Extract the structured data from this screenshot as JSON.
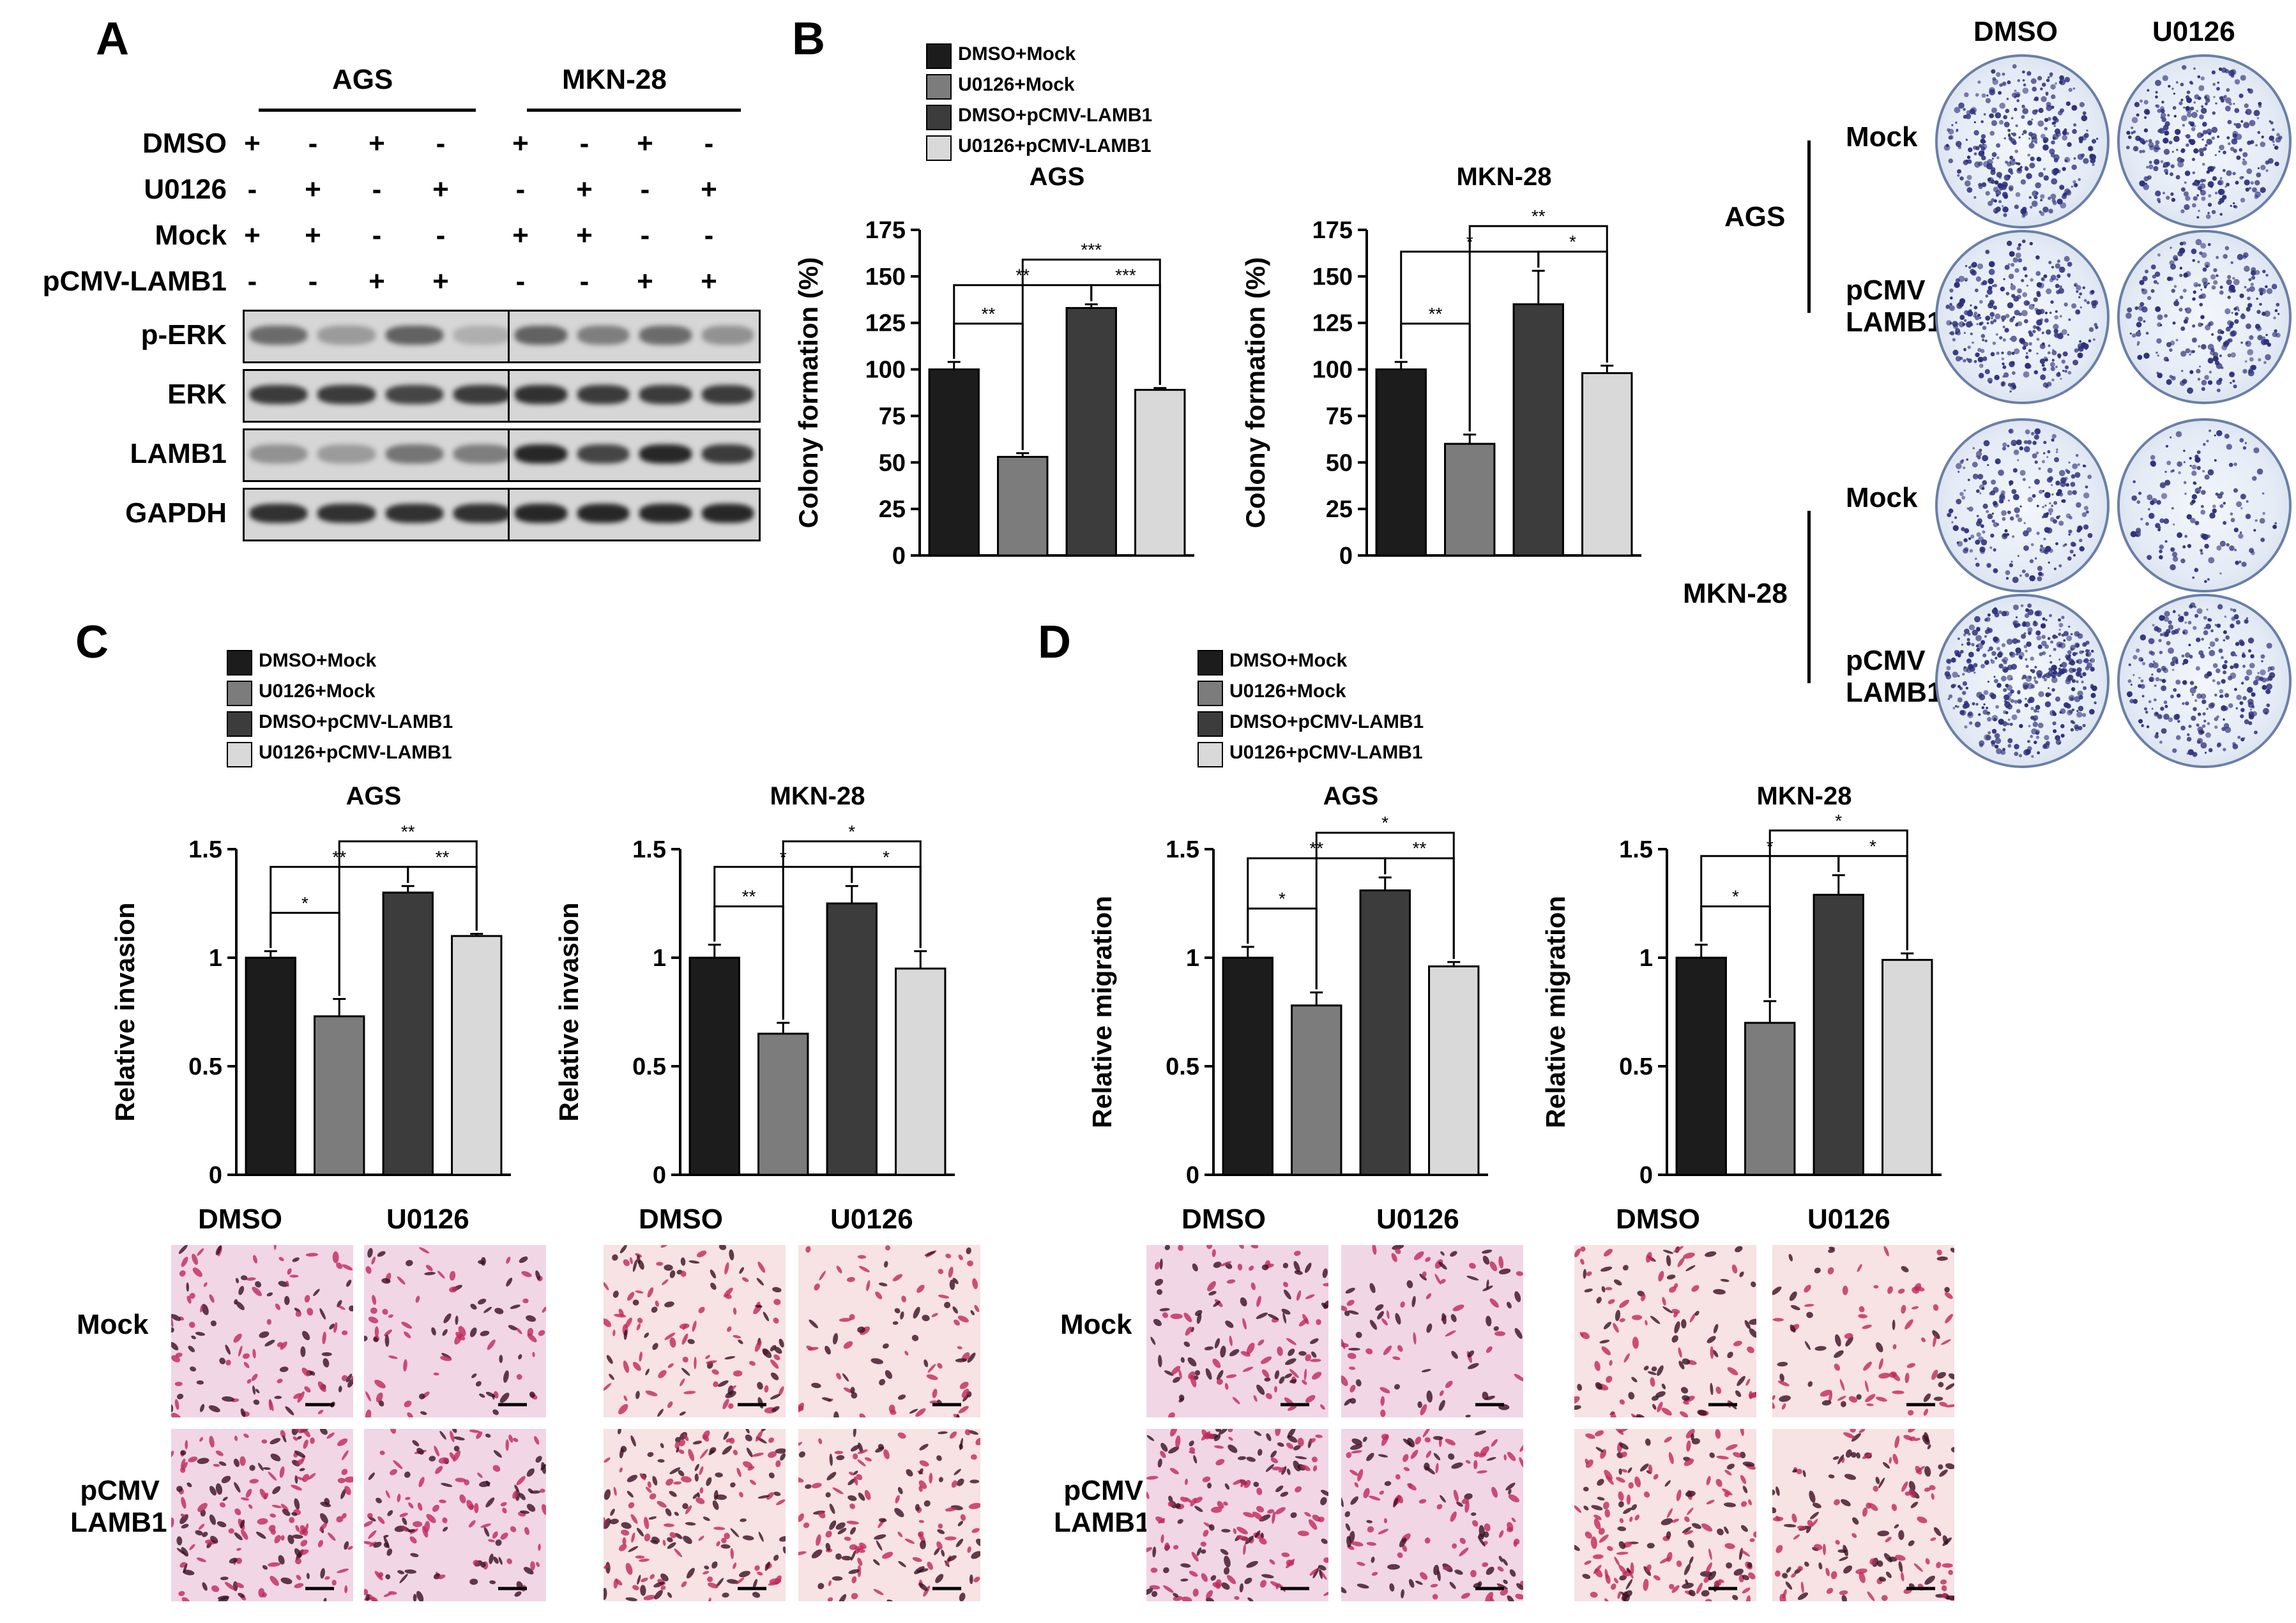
{
  "colors": {
    "s1": "#1c1c1c",
    "s2": "#7c7c7c",
    "s3": "#3c3c3c",
    "s4": "#d9d9d9"
  },
  "panels": {
    "a": "A",
    "b": "B",
    "c": "C",
    "d": "D"
  },
  "legend": [
    "DMSO+Mock",
    "U0126+Mock",
    "DMSO+pCMV-LAMB1",
    "U0126+pCMV-LAMB1"
  ],
  "blot": {
    "cell_ags": "AGS",
    "cell_mkn": "MKN-28",
    "rows": [
      {
        "name": "DMSO",
        "signs": [
          "+",
          "-",
          "+",
          "-",
          "+",
          "-",
          "+",
          "-"
        ]
      },
      {
        "name": "U0126",
        "signs": [
          "-",
          "+",
          "-",
          "+",
          "-",
          "+",
          "-",
          "+"
        ]
      },
      {
        "name": "Mock",
        "signs": [
          "+",
          "+",
          "-",
          "-",
          "+",
          "+",
          "-",
          "-"
        ]
      },
      {
        "name": "pCMV-LAMB1",
        "signs": [
          "-",
          "-",
          "+",
          "+",
          "-",
          "-",
          "+",
          "+"
        ]
      }
    ],
    "proteins": [
      "p-ERK",
      "ERK",
      "LAMB1",
      "GAPDH"
    ]
  },
  "colony_plates": {
    "col_dmso": "DMSO",
    "col_u0126": "U0126",
    "ags": "AGS",
    "mkn": "MKN-28",
    "mock": "Mock",
    "pcmv1": "pCMV",
    "pcmv2": "LAMB1"
  },
  "micro_labels": {
    "dmso": "DMSO",
    "u0126": "U0126",
    "mock": "Mock",
    "pcmv1": "pCMV",
    "pcmv2": "LAMB1"
  },
  "chart_data": [
    {
      "id": "b_ags",
      "type": "bar",
      "title": "AGS",
      "ylabel": "Colony formation (%)",
      "ylim": [
        0,
        175
      ],
      "ticks": [
        0,
        25,
        50,
        75,
        100,
        125,
        150,
        175
      ],
      "categories": [
        "DMSO+Mock",
        "U0126+Mock",
        "DMSO+pCMV-LAMB1",
        "U0126+pCMV-LAMB1"
      ],
      "values": [
        100,
        53,
        133,
        89
      ],
      "errors": [
        4,
        2,
        2,
        1
      ],
      "sig": [
        {
          "a": 0,
          "b": 1,
          "label": "**",
          "level": 1
        },
        {
          "a": 0,
          "b": 2,
          "label": "**",
          "level": 2
        },
        {
          "a": 2,
          "b": 3,
          "label": "***",
          "level": 2
        },
        {
          "a": 1,
          "b": 3,
          "label": "***",
          "level": 3
        }
      ]
    },
    {
      "id": "b_mkn",
      "type": "bar",
      "title": "MKN-28",
      "ylabel": "Colony formation (%)",
      "ylim": [
        0,
        175
      ],
      "ticks": [
        0,
        25,
        50,
        75,
        100,
        125,
        150,
        175
      ],
      "categories": [
        "DMSO+Mock",
        "U0126+Mock",
        "DMSO+pCMV-LAMB1",
        "U0126+pCMV-LAMB1"
      ],
      "values": [
        100,
        60,
        135,
        98
      ],
      "errors": [
        4,
        5,
        18,
        4
      ],
      "sig": [
        {
          "a": 0,
          "b": 1,
          "label": "**",
          "level": 1
        },
        {
          "a": 0,
          "b": 2,
          "label": "*",
          "level": 2
        },
        {
          "a": 2,
          "b": 3,
          "label": "*",
          "level": 2
        },
        {
          "a": 1,
          "b": 3,
          "label": "**",
          "level": 3
        }
      ]
    },
    {
      "id": "c_ags",
      "type": "bar",
      "title": "AGS",
      "ylabel": "Relative invasion",
      "ylim": [
        0,
        1.5
      ],
      "ticks": [
        0,
        0.5,
        1,
        1.5
      ],
      "categories": [
        "DMSO+Mock",
        "U0126+Mock",
        "DMSO+pCMV-LAMB1",
        "U0126+pCMV-LAMB1"
      ],
      "values": [
        1.0,
        0.73,
        1.3,
        1.1
      ],
      "errors": [
        0.03,
        0.08,
        0.03,
        0.01
      ],
      "sig": [
        {
          "a": 0,
          "b": 1,
          "label": "*",
          "level": 1
        },
        {
          "a": 0,
          "b": 2,
          "label": "**",
          "level": 2
        },
        {
          "a": 2,
          "b": 3,
          "label": "**",
          "level": 2
        },
        {
          "a": 1,
          "b": 3,
          "label": "**",
          "level": 3
        }
      ]
    },
    {
      "id": "c_mkn",
      "type": "bar",
      "title": "MKN-28",
      "ylabel": "Relative invasion",
      "ylim": [
        0,
        1.5
      ],
      "ticks": [
        0,
        0.5,
        1,
        1.5
      ],
      "categories": [
        "DMSO+Mock",
        "U0126+Mock",
        "DMSO+pCMV-LAMB1",
        "U0126+pCMV-LAMB1"
      ],
      "values": [
        1.0,
        0.65,
        1.25,
        0.95
      ],
      "errors": [
        0.06,
        0.05,
        0.08,
        0.08
      ],
      "sig": [
        {
          "a": 0,
          "b": 1,
          "label": "**",
          "level": 1
        },
        {
          "a": 0,
          "b": 2,
          "label": "*",
          "level": 2
        },
        {
          "a": 2,
          "b": 3,
          "label": "*",
          "level": 2
        },
        {
          "a": 1,
          "b": 3,
          "label": "*",
          "level": 3
        }
      ]
    },
    {
      "id": "d_ags",
      "type": "bar",
      "title": "AGS",
      "ylabel": "Relative migration",
      "ylim": [
        0,
        1.5
      ],
      "ticks": [
        0,
        0.5,
        1,
        1.5
      ],
      "categories": [
        "DMSO+Mock",
        "U0126+Mock",
        "DMSO+pCMV-LAMB1",
        "U0126+pCMV-LAMB1"
      ],
      "values": [
        1.0,
        0.78,
        1.31,
        0.96
      ],
      "errors": [
        0.05,
        0.06,
        0.06,
        0.02
      ],
      "sig": [
        {
          "a": 0,
          "b": 1,
          "label": "*",
          "level": 1
        },
        {
          "a": 0,
          "b": 2,
          "label": "**",
          "level": 2
        },
        {
          "a": 2,
          "b": 3,
          "label": "**",
          "level": 2
        },
        {
          "a": 1,
          "b": 3,
          "label": "*",
          "level": 3
        }
      ]
    },
    {
      "id": "d_mkn",
      "type": "bar",
      "title": "MKN-28",
      "ylabel": "Relative migration",
      "ylim": [
        0,
        1.5
      ],
      "ticks": [
        0,
        0.5,
        1,
        1.5
      ],
      "categories": [
        "DMSO+Mock",
        "U0126+Mock",
        "DMSO+pCMV-LAMB1",
        "U0126+pCMV-LAMB1"
      ],
      "values": [
        1.0,
        0.7,
        1.29,
        0.99
      ],
      "errors": [
        0.06,
        0.1,
        0.09,
        0.03
      ],
      "sig": [
        {
          "a": 0,
          "b": 1,
          "label": "*",
          "level": 1
        },
        {
          "a": 0,
          "b": 2,
          "label": "*",
          "level": 2
        },
        {
          "a": 2,
          "b": 3,
          "label": "*",
          "level": 2
        },
        {
          "a": 1,
          "b": 3,
          "label": "*",
          "level": 3
        }
      ]
    }
  ]
}
